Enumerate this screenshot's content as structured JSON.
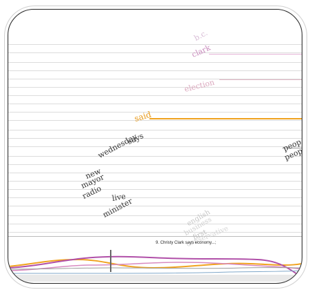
{
  "words": {
    "bc": "b.c.",
    "clark": "clark",
    "election": "election",
    "said": "said",
    "says": "says",
    "wednesday": "wednesday",
    "new": "new",
    "mayor": "mayor",
    "radio": "radio",
    "live": "live",
    "minister": "minister",
    "people_edge": "peop",
    "people_edge2": "peop",
    "english": "english",
    "business": "business",
    "first": "first",
    "conservative": "conservative"
  },
  "caption": "9. Christy Clark says economy...;",
  "colors": {
    "pink": "#d88ac0",
    "orange": "#f0a21f",
    "violet": "#b04fa8",
    "gray": "#bdbdbd"
  }
}
